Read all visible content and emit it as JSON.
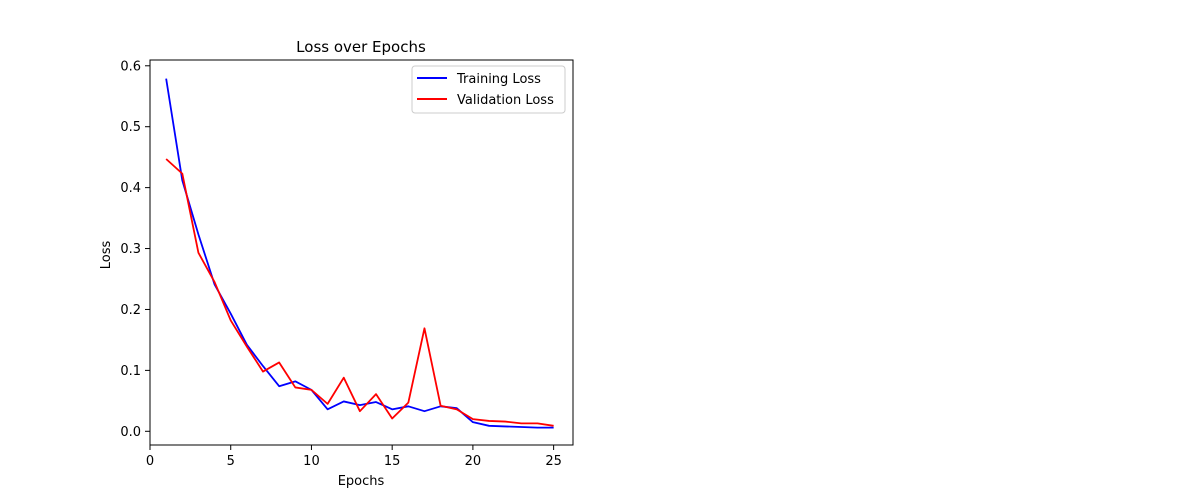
{
  "chart_data": {
    "type": "line",
    "title": "Loss over Epochs",
    "xlabel": "Epochs",
    "ylabel": "Loss",
    "xlim": [
      0,
      26.2
    ],
    "ylim": [
      -0.0225,
      0.6095
    ],
    "xticks": [
      0,
      5,
      10,
      15,
      20,
      25
    ],
    "yticks": [
      0.0,
      0.1,
      0.2,
      0.3,
      0.4,
      0.5,
      0.6
    ],
    "ytick_labels": [
      "0.0",
      "0.1",
      "0.2",
      "0.3",
      "0.4",
      "0.5",
      "0.6"
    ],
    "grid": false,
    "legend_position": "top-right",
    "x": [
      1,
      2,
      3,
      4,
      5,
      6,
      7,
      8,
      9,
      10,
      11,
      12,
      13,
      14,
      15,
      16,
      17,
      18,
      19,
      20,
      21,
      22,
      23,
      24,
      25
    ],
    "series": [
      {
        "name": "Training Loss",
        "color": "#0000ff",
        "values": [
          0.579,
          0.412,
          0.323,
          0.241,
          0.193,
          0.142,
          0.107,
          0.074,
          0.082,
          0.068,
          0.036,
          0.049,
          0.043,
          0.048,
          0.036,
          0.041,
          0.033,
          0.041,
          0.038,
          0.015,
          0.009,
          0.008,
          0.007,
          0.006,
          0.006
        ]
      },
      {
        "name": "Validation Loss",
        "color": "#ff0000",
        "values": [
          0.447,
          0.423,
          0.293,
          0.245,
          0.182,
          0.139,
          0.098,
          0.113,
          0.072,
          0.068,
          0.045,
          0.088,
          0.033,
          0.061,
          0.021,
          0.047,
          0.169,
          0.042,
          0.036,
          0.02,
          0.017,
          0.016,
          0.013,
          0.013,
          0.009
        ]
      }
    ]
  }
}
